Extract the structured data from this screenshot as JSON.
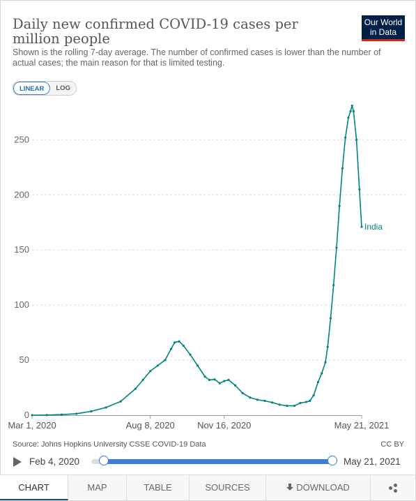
{
  "header": {
    "title": "Daily new confirmed COVID-19 cases per million people",
    "subtitle": "Shown is the rolling 7-day average. The number of confirmed cases is lower than the number of actual cases; the main reason for that is limited testing.",
    "logo_line1": "Our World",
    "logo_line2": "in Data"
  },
  "scale_toggle": {
    "linear_label": "LINEAR",
    "log_label": "LOG",
    "selected": "LINEAR"
  },
  "chart_data": {
    "type": "line",
    "title": "Daily new confirmed COVID-19 cases per million people",
    "xlabel": "",
    "ylabel": "",
    "ylim": [
      0,
      280
    ],
    "xlim": [
      "2020-03-01",
      "2021-05-21"
    ],
    "yticks": [
      0,
      50,
      100,
      150,
      200,
      250
    ],
    "ytick_labels": [
      "0",
      "50",
      "100",
      "150",
      "200",
      "250"
    ],
    "xticks": [
      "2020-03-01",
      "2020-08-08",
      "2020-11-16",
      "2021-05-21"
    ],
    "xtick_labels": [
      "Mar 1, 2020",
      "Aug 8, 2020",
      "Nov 16, 2020",
      "May 21, 2021"
    ],
    "grid": "horizontal dashed",
    "legend": "inline label at line end",
    "series": [
      {
        "name": "India",
        "color": "#00847e",
        "points": [
          [
            "2020-03-01",
            0
          ],
          [
            "2020-03-21",
            0.1
          ],
          [
            "2020-04-10",
            0.5
          ],
          [
            "2020-04-30",
            1.3
          ],
          [
            "2020-05-20",
            3.5
          ],
          [
            "2020-06-09",
            7
          ],
          [
            "2020-06-29",
            12.5
          ],
          [
            "2020-07-19",
            24
          ],
          [
            "2020-07-29",
            32
          ],
          [
            "2020-08-08",
            40
          ],
          [
            "2020-08-18",
            45
          ],
          [
            "2020-08-28",
            50
          ],
          [
            "2020-09-05",
            60
          ],
          [
            "2020-09-10",
            66
          ],
          [
            "2020-09-16",
            67
          ],
          [
            "2020-09-22",
            63
          ],
          [
            "2020-10-01",
            55
          ],
          [
            "2020-10-11",
            45
          ],
          [
            "2020-10-21",
            35
          ],
          [
            "2020-10-27",
            32
          ],
          [
            "2020-11-03",
            32.5
          ],
          [
            "2020-11-10",
            29
          ],
          [
            "2020-11-16",
            31
          ],
          [
            "2020-11-22",
            32
          ],
          [
            "2020-12-01",
            27
          ],
          [
            "2020-12-11",
            20
          ],
          [
            "2020-12-21",
            16
          ],
          [
            "2020-12-31",
            14
          ],
          [
            "2021-01-10",
            13
          ],
          [
            "2021-01-20",
            11.5
          ],
          [
            "2021-01-30",
            9.5
          ],
          [
            "2021-02-09",
            8.5
          ],
          [
            "2021-02-19",
            8.5
          ],
          [
            "2021-02-27",
            11
          ],
          [
            "2021-03-07",
            12
          ],
          [
            "2021-03-12",
            13
          ],
          [
            "2021-03-17",
            18
          ],
          [
            "2021-03-23",
            30
          ],
          [
            "2021-03-28",
            38
          ],
          [
            "2021-04-02",
            48
          ],
          [
            "2021-04-05",
            62
          ],
          [
            "2021-04-09",
            88
          ],
          [
            "2021-04-13",
            118
          ],
          [
            "2021-04-17",
            152
          ],
          [
            "2021-04-21",
            190
          ],
          [
            "2021-04-25",
            224
          ],
          [
            "2021-04-29",
            252
          ],
          [
            "2021-05-03",
            270
          ],
          [
            "2021-05-06",
            276
          ],
          [
            "2021-05-08",
            281
          ],
          [
            "2021-05-10",
            276
          ],
          [
            "2021-05-14",
            250
          ],
          [
            "2021-05-18",
            205
          ],
          [
            "2021-05-21",
            171
          ]
        ]
      }
    ]
  },
  "footer": {
    "source": "Source: Johns Hopkins University CSSE COVID-19 Data",
    "license": "CC BY"
  },
  "timeline": {
    "start_date": "Feb 4, 2020",
    "end_date": "May 21, 2021"
  },
  "tabs": [
    {
      "label": "CHART",
      "active": true
    },
    {
      "label": "MAP"
    },
    {
      "label": "TABLE"
    },
    {
      "label": "SOURCES"
    },
    {
      "label": "DOWNLOAD",
      "icon": "download-icon"
    },
    {
      "label": "",
      "icon": "share-icon"
    }
  ]
}
